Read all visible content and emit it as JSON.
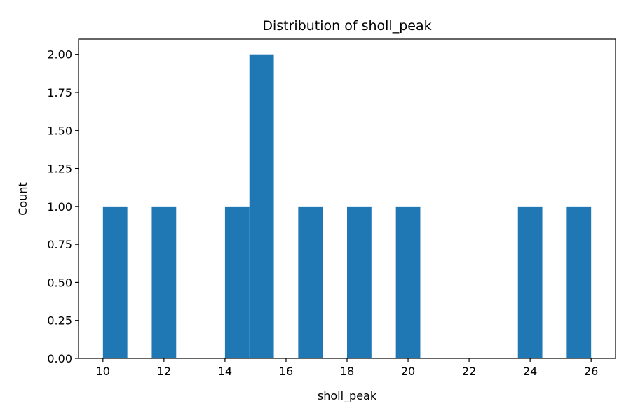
{
  "chart_data": {
    "type": "bar",
    "title": "Distribution of sholl_peak",
    "xlabel": "sholl_peak",
    "ylabel": "Count",
    "xlim": [
      9.2,
      26.8
    ],
    "ylim": [
      0,
      2.1
    ],
    "xticks": [
      10,
      12,
      14,
      16,
      18,
      20,
      22,
      24,
      26
    ],
    "yticks": [
      0.0,
      0.25,
      0.5,
      0.75,
      1.0,
      1.25,
      1.5,
      1.75,
      2.0
    ],
    "bin_edges": [
      10.0,
      10.8,
      11.6,
      12.4,
      13.2,
      14.0,
      14.8,
      15.6,
      16.4,
      17.2,
      18.0,
      18.8,
      19.6,
      20.4,
      21.2,
      22.0,
      22.8,
      23.6,
      24.4,
      25.2,
      26.0
    ],
    "counts": [
      1,
      0,
      1,
      0,
      0,
      1,
      2,
      0,
      1,
      0,
      1,
      0,
      1,
      0,
      0,
      0,
      0,
      1,
      0,
      1
    ],
    "bar_color": "#1f77b4",
    "grid": false
  }
}
